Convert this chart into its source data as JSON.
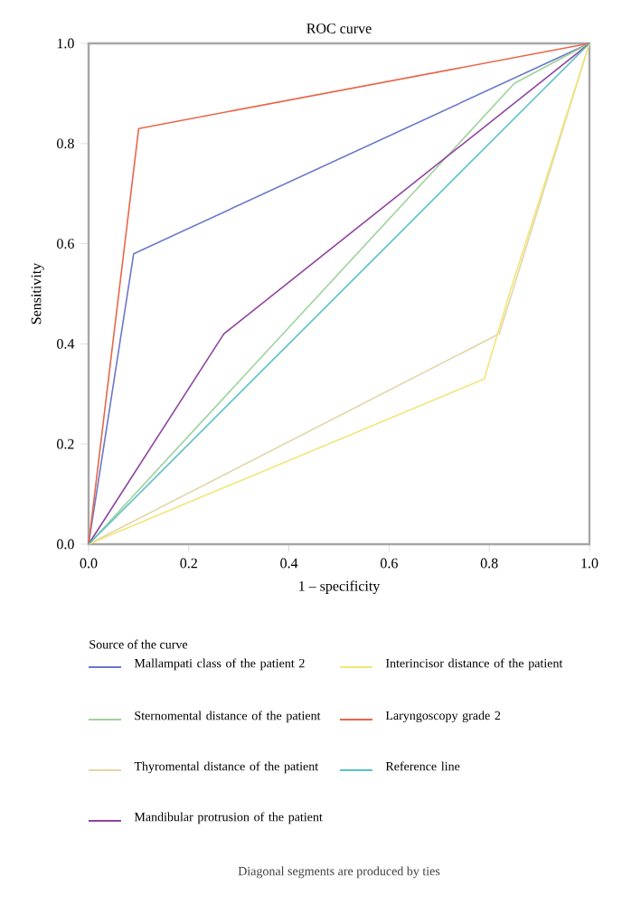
{
  "chart_data": {
    "type": "line",
    "title": "ROC curve",
    "xlabel": "1 – specificity",
    "ylabel": "Sensitivity",
    "legend_title": "Source of the curve",
    "xlim": [
      0,
      1
    ],
    "ylim": [
      0,
      1
    ],
    "xticks": [
      {
        "value": 0,
        "label": "0.0"
      },
      {
        "value": 0.2,
        "label": "0.2"
      },
      {
        "value": 0.4,
        "label": "0.4"
      },
      {
        "value": 0.6,
        "label": "0.6"
      },
      {
        "value": 0.8,
        "label": "0.8"
      },
      {
        "value": 1,
        "label": "1.0"
      }
    ],
    "yticks": [
      {
        "value": 0,
        "label": "0.0"
      },
      {
        "value": 0.2,
        "label": "0.2"
      },
      {
        "value": 0.4,
        "label": "0.4"
      },
      {
        "value": 0.6,
        "label": "0.6"
      },
      {
        "value": 0.8,
        "label": "0.8"
      },
      {
        "value": 1,
        "label": "1.0"
      }
    ],
    "grid": false,
    "legend": "bottom",
    "marker": "none",
    "line_style": "solid",
    "series": [
      {
        "name": "Mallampati class of the patient 2",
        "color": "#6a78c8",
        "x": [
          0,
          0.09,
          1
        ],
        "values": [
          0,
          0.58,
          1
        ]
      },
      {
        "name": "Sternomental distance of the patient",
        "color": "#9fd29b",
        "x": [
          0,
          0.85,
          1
        ],
        "values": [
          0,
          0.92,
          1
        ]
      },
      {
        "name": "Thyromental distance of the patient",
        "color": "#e2d6a6",
        "x": [
          0,
          0.82,
          1
        ],
        "values": [
          0,
          0.42,
          1
        ]
      },
      {
        "name": "Mandibular protrusion of the patient",
        "color": "#8e44a0",
        "x": [
          0,
          0.27,
          1
        ],
        "values": [
          0,
          0.42,
          1
        ]
      },
      {
        "name": "Interincisor distance of the patient",
        "color": "#f2e57a",
        "x": [
          0,
          0.79,
          0.84,
          1
        ],
        "values": [
          0,
          0.33,
          0.5,
          1
        ]
      },
      {
        "name": "Laryngoscopy grade 2",
        "color": "#e8664a",
        "x": [
          0,
          0.1,
          1
        ],
        "values": [
          0,
          0.83,
          1
        ]
      },
      {
        "name": "Reference line",
        "color": "#5bbfc8",
        "x": [
          0,
          1
        ],
        "values": [
          0,
          1
        ]
      }
    ],
    "annotations": [
      "Diagonal segments are produced by ties"
    ]
  }
}
